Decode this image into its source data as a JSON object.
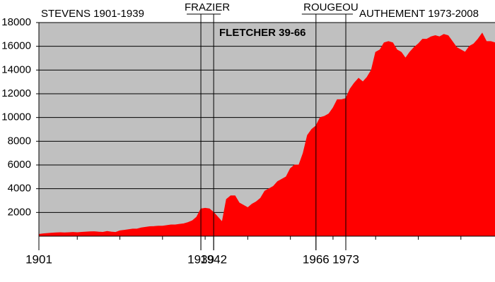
{
  "chart_data": {
    "type": "area",
    "color": "#ff0000",
    "background": "#c0c0c0",
    "grid": true,
    "x": [
      1901,
      1902,
      1903,
      1904,
      1905,
      1906,
      1907,
      1908,
      1909,
      1910,
      1911,
      1912,
      1913,
      1914,
      1915,
      1916,
      1917,
      1918,
      1919,
      1920,
      1921,
      1922,
      1923,
      1924,
      1925,
      1926,
      1927,
      1928,
      1929,
      1930,
      1931,
      1932,
      1933,
      1934,
      1935,
      1936,
      1937,
      1938,
      1939,
      1940,
      1941,
      1942,
      1943,
      1944,
      1945,
      1946,
      1947,
      1948,
      1949,
      1950,
      1951,
      1952,
      1953,
      1954,
      1955,
      1956,
      1957,
      1958,
      1959,
      1960,
      1961,
      1962,
      1963,
      1964,
      1965,
      1966,
      1967,
      1968,
      1969,
      1970,
      1971,
      1972,
      1973,
      1974,
      1975,
      1976,
      1977,
      1978,
      1979,
      1980,
      1981,
      1982,
      1983,
      1984,
      1985,
      1986,
      1987,
      1988,
      1989,
      1990,
      1991,
      1992,
      1993,
      1994,
      1995,
      1996,
      1997,
      1998,
      1999,
      2000,
      2001,
      2002,
      2003,
      2004,
      2005,
      2006,
      2007,
      2008
    ],
    "values": [
      150,
      200,
      230,
      260,
      280,
      300,
      280,
      300,
      320,
      300,
      330,
      350,
      370,
      380,
      350,
      330,
      400,
      350,
      320,
      450,
      500,
      550,
      600,
      600,
      700,
      750,
      800,
      820,
      850,
      850,
      900,
      950,
      950,
      1000,
      1050,
      1150,
      1300,
      1600,
      2300,
      2350,
      2300,
      2000,
      1600,
      1200,
      3100,
      3400,
      3400,
      2800,
      2600,
      2400,
      2700,
      2900,
      3200,
      3800,
      4000,
      4200,
      4600,
      4800,
      5000,
      5700,
      6000,
      6000,
      7000,
      8500,
      9000,
      9300,
      10000,
      10100,
      10300,
      10800,
      11500,
      11500,
      11600,
      12400,
      12900,
      13300,
      13000,
      13400,
      14000,
      15500,
      15700,
      16300,
      16400,
      16300,
      15700,
      15500,
      15000,
      15500,
      15900,
      16200,
      16600,
      16600,
      16800,
      16900,
      16800,
      17000,
      16900,
      16400,
      15900,
      15700,
      15500,
      16000,
      16200,
      16600,
      17100,
      16400,
      16400,
      16300
    ],
    "xlim": [
      1901,
      2008
    ],
    "ylim": [
      0,
      18000
    ],
    "xticks": [
      1901,
      1939,
      1942,
      1966,
      1973
    ],
    "xminor": [
      1910,
      1920,
      1930,
      1940,
      1950,
      1960,
      1970,
      1980,
      1990,
      2000
    ],
    "yticks": [
      2000,
      4000,
      6000,
      8000,
      10000,
      12000,
      14000,
      16000,
      18000
    ],
    "annotations": [
      {
        "text": "FRAZIER",
        "x": [
          1939,
          1942
        ]
      },
      {
        "text": "ROUGEOU",
        "x": [
          1966,
          1973
        ]
      }
    ],
    "labels": [
      "STEVENS 1901-1939",
      "AUTHEMENT 1973-2008"
    ],
    "highlight": {
      "text": "FLETCHER 39-66",
      "color": "#ff0000"
    }
  }
}
